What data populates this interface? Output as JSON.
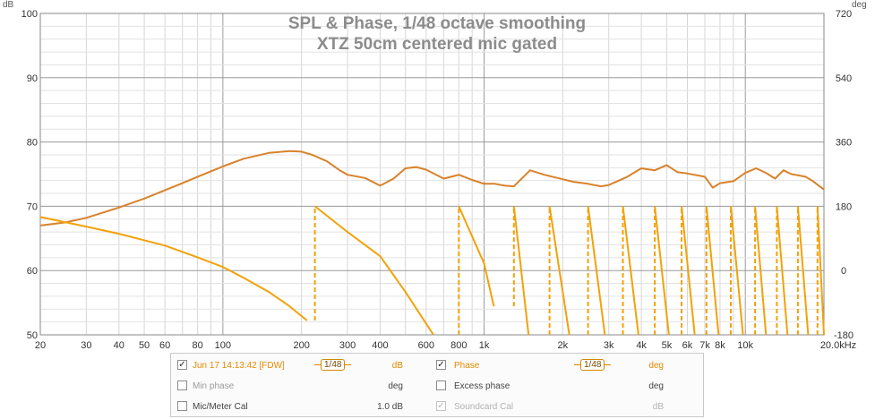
{
  "chart_data": {
    "type": "line",
    "title": "SPL & Phase, 1/48 octave smoothing",
    "subtitle": "XTZ 50cm centered mic gated",
    "xlabel": "",
    "ylabel": "dB",
    "y2label": "deg",
    "xscale": "log",
    "xlim": [
      20,
      20000
    ],
    "ylim": [
      50,
      100
    ],
    "y2lim": [
      -180,
      720
    ],
    "grid": true,
    "x_ticks": [
      "20",
      "30",
      "40",
      "50",
      "60",
      "80",
      "100",
      "200",
      "300",
      "400",
      "600",
      "800",
      "1k",
      "2k",
      "3k",
      "4k",
      "5k",
      "6k",
      "7k",
      "8k",
      "10k",
      "20.0kHz"
    ],
    "y_ticks": [
      "50",
      "60",
      "70",
      "80",
      "90",
      "100"
    ],
    "y2_ticks": [
      "-180",
      "0",
      "180",
      "360",
      "540",
      "720"
    ],
    "series": [
      {
        "name": "Jun 17 14:13:42 [FDW]",
        "axis": "left",
        "color": "#d9822b",
        "x": [
          20,
          25,
          30,
          40,
          50,
          60,
          70,
          80,
          100,
          120,
          150,
          180,
          200,
          220,
          250,
          280,
          300,
          350,
          400,
          450,
          500,
          550,
          600,
          700,
          800,
          900,
          1000,
          1100,
          1200,
          1300,
          1500,
          1700,
          2000,
          2200,
          2500,
          2800,
          3000,
          3500,
          4000,
          4500,
          5000,
          5500,
          6000,
          7000,
          7500,
          8000,
          9000,
          10000,
          11000,
          12000,
          13000,
          14000,
          15000,
          16000,
          17000,
          18000,
          20000
        ],
        "values": [
          67,
          67.5,
          68.2,
          69.8,
          71.2,
          72.5,
          73.6,
          74.6,
          76.2,
          77.4,
          78.3,
          78.6,
          78.5,
          78,
          77,
          75.6,
          74.9,
          74.4,
          73.2,
          74.3,
          75.9,
          76.1,
          75.7,
          74.3,
          74.9,
          74.1,
          73.5,
          73.5,
          73.2,
          73.1,
          75.6,
          74.9,
          74.2,
          73.8,
          73.5,
          73.1,
          73.3,
          74.5,
          75.9,
          75.6,
          76.4,
          75.3,
          75.1,
          74.6,
          72.9,
          73.6,
          73.9,
          75.2,
          75.9,
          75.2,
          74.3,
          75.6,
          75,
          74.8,
          74.6,
          74,
          72.6
        ]
      },
      {
        "name": "Phase",
        "axis": "right",
        "color": "#f2a20a",
        "x": [
          20,
          30,
          40,
          60,
          80,
          100,
          120,
          150,
          180,
          210,
          225,
          300,
          400,
          500,
          640,
          800,
          1000,
          1090,
          1300,
          1480,
          1780,
          2120,
          2500,
          2900,
          3400,
          3900,
          4500,
          5100,
          5700,
          6400,
          7100,
          7900,
          8800,
          9800,
          10900,
          12000,
          13200,
          14500,
          15900,
          17400,
          18900,
          20000
        ],
        "values": [
          150,
          123,
          103,
          70,
          37,
          10,
          -20,
          -60,
          -100,
          -140,
          180,
          108,
          40,
          -60,
          -180,
          180,
          20,
          -100,
          180,
          -180,
          180,
          -180,
          180,
          -180,
          180,
          -180,
          180,
          -180,
          180,
          -180,
          180,
          -180,
          180,
          -180,
          180,
          -180,
          180,
          -180,
          180,
          -180,
          180,
          -180
        ]
      }
    ],
    "legend": {
      "placement": "bottom",
      "rows": [
        [
          {
            "checked": true,
            "label": "Jun 17 14:13:42 [FDW]",
            "smoothing": "1/48",
            "unit": "dB"
          },
          {
            "checked": true,
            "label": "Phase",
            "smoothing": "1/48",
            "unit": "deg"
          }
        ],
        [
          {
            "checked": false,
            "label": "Min phase",
            "unit": "deg"
          },
          {
            "checked": false,
            "label": "Excess phase",
            "unit": "deg"
          }
        ],
        [
          {
            "checked": false,
            "label": "Mic/Meter Cal",
            "unit": "1.0 dB"
          },
          {
            "checked": true,
            "disabled": true,
            "label": "Soundcard Cal",
            "unit": "dB"
          }
        ]
      ]
    }
  }
}
